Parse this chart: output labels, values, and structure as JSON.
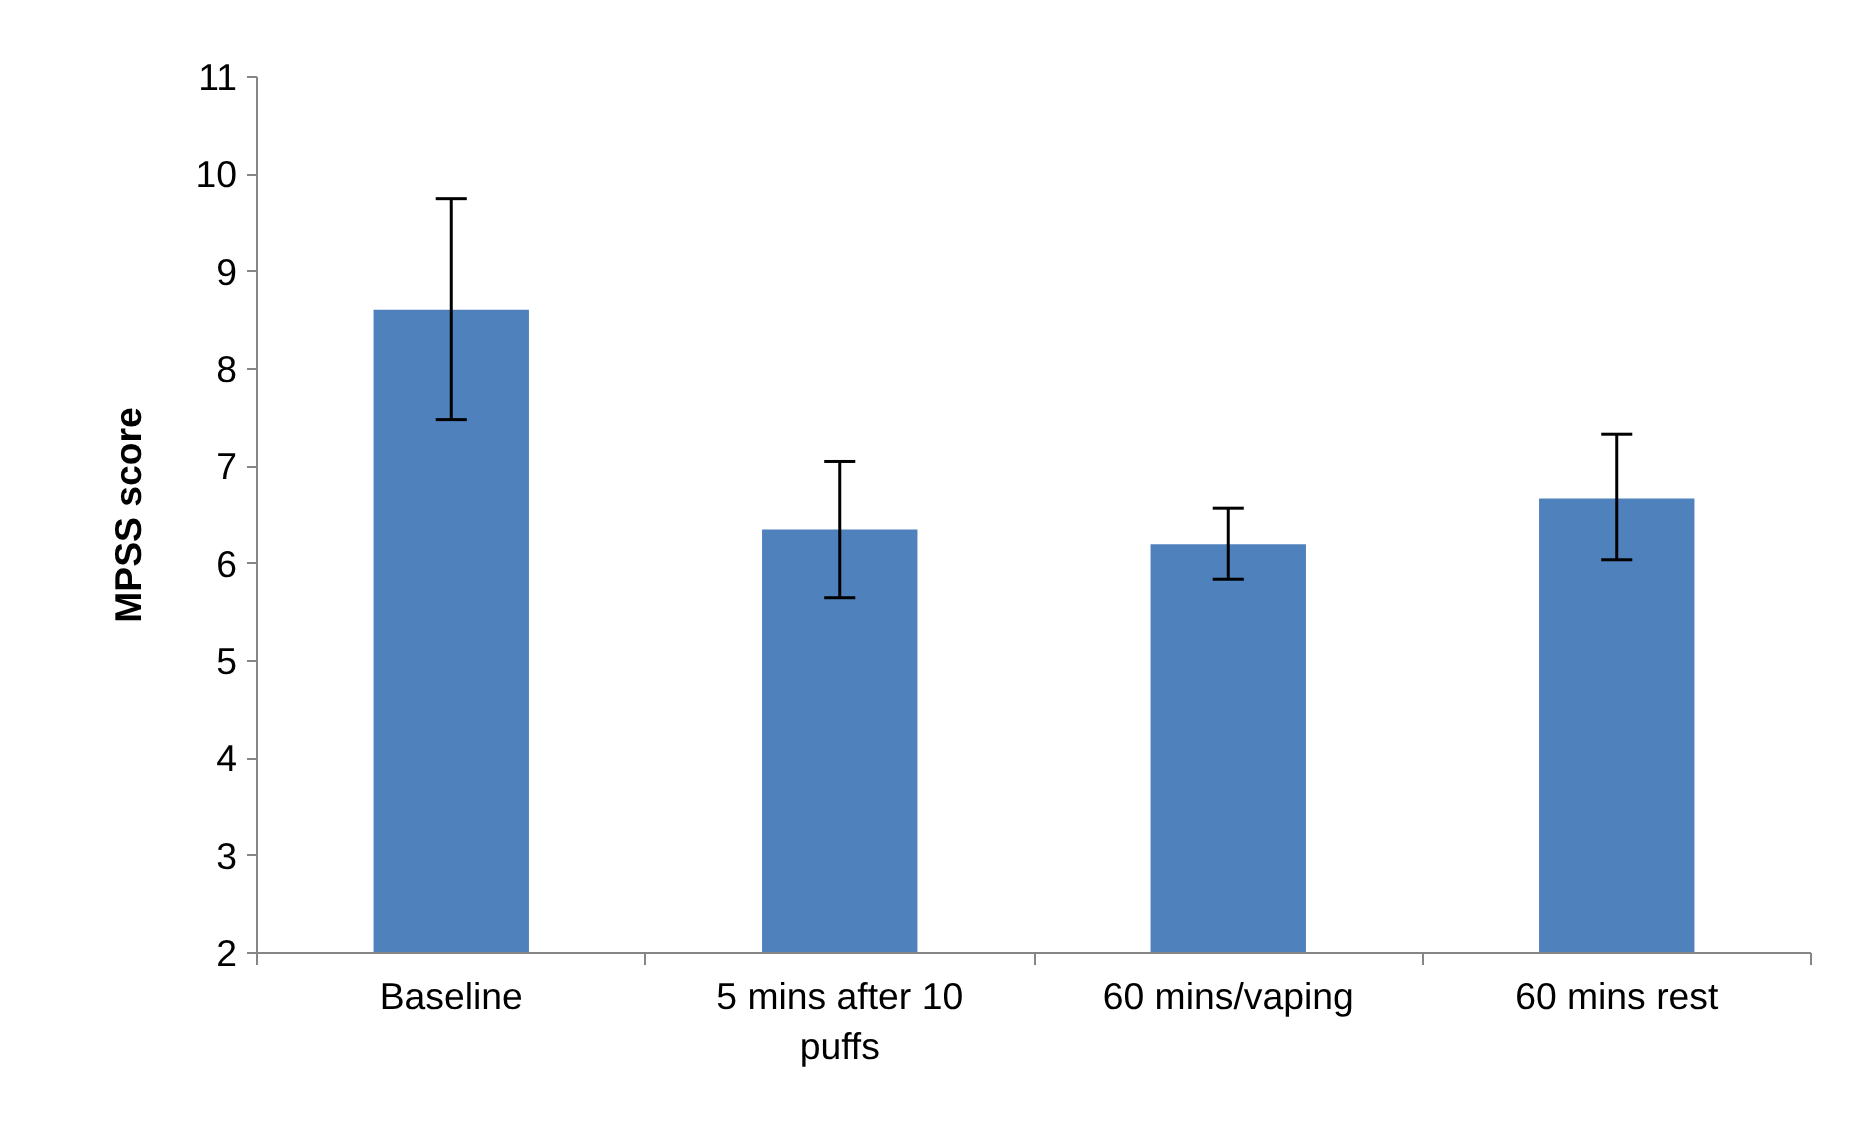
{
  "chart_data": {
    "type": "bar",
    "ylabel": "MPSS score",
    "categories": [
      "Baseline",
      "5 mins after 10 puffs",
      "60 mins/vaping",
      "60 mins rest"
    ],
    "values": [
      8.61,
      6.35,
      6.2,
      6.67
    ],
    "errors": [
      [
        7.48,
        9.75
      ],
      [
        5.65,
        7.05
      ],
      [
        5.84,
        6.57
      ],
      [
        6.04,
        7.33
      ]
    ],
    "color": "#4f81bd",
    "ylim": [
      2,
      11
    ],
    "yticks": [
      2,
      3,
      4,
      5,
      6,
      7,
      8,
      9,
      10,
      11
    ],
    "grid": false
  }
}
